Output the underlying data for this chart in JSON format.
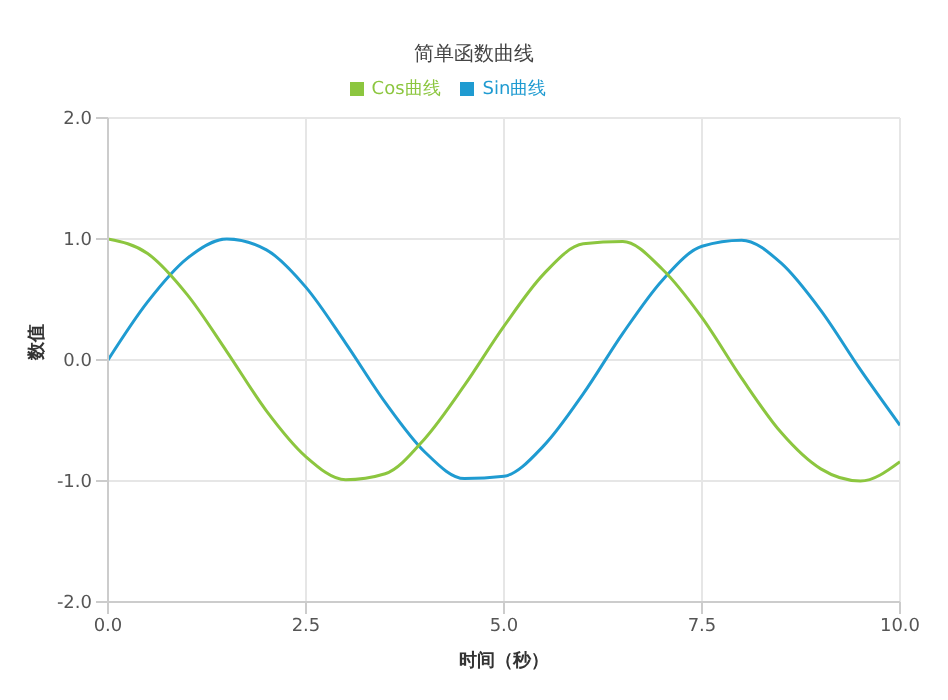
{
  "chart_data": {
    "type": "line",
    "title": "简单函数曲线",
    "xlabel": "时间（秒）",
    "ylabel": "数值",
    "x": [
      0,
      0.5,
      1,
      1.5,
      2,
      2.5,
      3,
      3.5,
      4,
      4.5,
      5,
      5.5,
      6,
      6.5,
      7,
      7.5,
      8,
      8.5,
      9,
      9.5,
      10
    ],
    "series": [
      {
        "name": "Sin曲线",
        "color": "#1f9bd1",
        "values": [
          0,
          0.48,
          0.84,
          1.0,
          0.91,
          0.6,
          0.14,
          -0.35,
          -0.76,
          -0.98,
          -0.96,
          -0.71,
          -0.28,
          0.22,
          0.66,
          0.94,
          0.99,
          0.8,
          0.41,
          -0.08,
          -0.54
        ]
      },
      {
        "name": "Cos曲线",
        "color": "#8cc63f",
        "values": [
          1,
          0.88,
          0.54,
          0.07,
          -0.42,
          -0.8,
          -0.99,
          -0.94,
          -0.65,
          -0.21,
          0.28,
          0.71,
          0.96,
          0.98,
          0.75,
          0.35,
          -0.15,
          -0.6,
          -0.9,
          -1.0,
          -0.84
        ]
      }
    ],
    "xlim": [
      0,
      10
    ],
    "xticks": [
      {
        "value": 0,
        "label": "0.0"
      },
      {
        "value": 2.5,
        "label": "2.5"
      },
      {
        "value": 5,
        "label": "5.0"
      },
      {
        "value": 7.5,
        "label": "7.5"
      },
      {
        "value": 10,
        "label": "10.0"
      }
    ],
    "ylim": [
      -2,
      2
    ],
    "yticks": [
      {
        "value": -2,
        "label": "-2.0"
      },
      {
        "value": -1,
        "label": "-1.0"
      },
      {
        "value": 0,
        "label": "0.0"
      },
      {
        "value": 1,
        "label": "1.0"
      },
      {
        "value": 2,
        "label": "2.0"
      }
    ],
    "grid": true,
    "legend": "top",
    "marker": "none",
    "line_style": "solid"
  }
}
